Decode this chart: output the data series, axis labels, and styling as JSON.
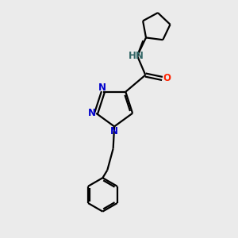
{
  "background_color": "#ebebeb",
  "bond_color": "#000000",
  "n_color": "#0000cc",
  "o_color": "#ff2200",
  "h_color": "#336666",
  "line_width": 1.6,
  "figsize": [
    3.0,
    3.0
  ],
  "dpi": 100,
  "xlim": [
    0,
    10
  ],
  "ylim": [
    0,
    10
  ],
  "font_size": 8.5
}
